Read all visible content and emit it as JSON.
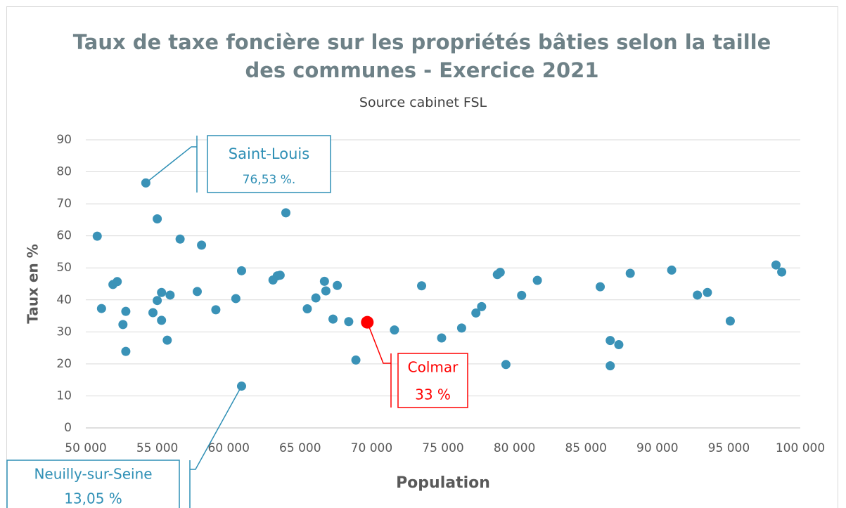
{
  "chart_data": {
    "type": "scatter",
    "title": "Taux de taxe foncière sur les propriétés bâties selon la taille des communes - Exercice 2021",
    "subtitle": "Source cabinet FSL",
    "x_label": "Population",
    "y_label": "Taux en %",
    "color": "#3a92b7",
    "highlight": {
      "index": 34,
      "color": "#ff0000"
    },
    "x": [
      50800,
      51100,
      51900,
      52200,
      52600,
      52800,
      52800,
      54200,
      54700,
      55000,
      55300,
      55300,
      55000,
      55900,
      55700,
      56600,
      57800,
      58100,
      59100,
      60500,
      60900,
      60900,
      63100,
      63400,
      63600,
      64000,
      65500,
      66100,
      66700,
      66800,
      67300,
      67600,
      68400,
      68900,
      69700,
      71600,
      73500,
      74900,
      76300,
      77300,
      77700,
      78800,
      79000,
      79400,
      80500,
      81600,
      86000,
      86700,
      86700,
      87300,
      88100,
      91000,
      92800,
      93500,
      95100,
      98300,
      98700
    ],
    "values": [
      59.9,
      37.3,
      44.8,
      45.7,
      32.3,
      36.4,
      23.9,
      76.53,
      36,
      39.8,
      42.3,
      33.6,
      65.3,
      41.5,
      27.4,
      59,
      42.6,
      57.1,
      36.9,
      40.4,
      49.1,
      13.05,
      46.2,
      47.5,
      47.7,
      67.2,
      37.2,
      40.6,
      45.8,
      42.8,
      34,
      44.5,
      33.2,
      21.2,
      33,
      30.6,
      44.4,
      28.1,
      31.2,
      35.9,
      37.9,
      47.9,
      48.6,
      19.8,
      41.4,
      46.1,
      44.1,
      27.3,
      19.4,
      26,
      48.3,
      49.3,
      41.5,
      42.3,
      33.4,
      50.9,
      48.7
    ],
    "xlim": [
      50000,
      100000
    ],
    "xticks": [
      {
        "value": 50000,
        "label": "50 000"
      },
      {
        "value": 55000,
        "label": "55 000"
      },
      {
        "value": 60000,
        "label": "60 000"
      },
      {
        "value": 65000,
        "label": "65 000"
      },
      {
        "value": 70000,
        "label": "70 000"
      },
      {
        "value": 75000,
        "label": "75 000"
      },
      {
        "value": 80000,
        "label": "80 000"
      },
      {
        "value": 85000,
        "label": "85 000"
      },
      {
        "value": 90000,
        "label": "90 000"
      },
      {
        "value": 95000,
        "label": "95 000"
      },
      {
        "value": 100000,
        "label": "100 000"
      }
    ],
    "ylim": [
      0,
      90
    ],
    "yticks": [
      0,
      10,
      20,
      30,
      40,
      50,
      60,
      70,
      80,
      90
    ],
    "grid": true,
    "annotations": [
      {
        "lines": [
          "Saint-Louis",
          "76,53 %."
        ],
        "point": 7,
        "color": "#2e8fb5"
      },
      {
        "lines": [
          "Colmar",
          "33 %"
        ],
        "point": 34,
        "color": "#ff0000"
      },
      {
        "lines": [
          "Neuilly-sur-Seine",
          "13,05 %"
        ],
        "point": 21,
        "color": "#2e8fb5"
      }
    ]
  }
}
